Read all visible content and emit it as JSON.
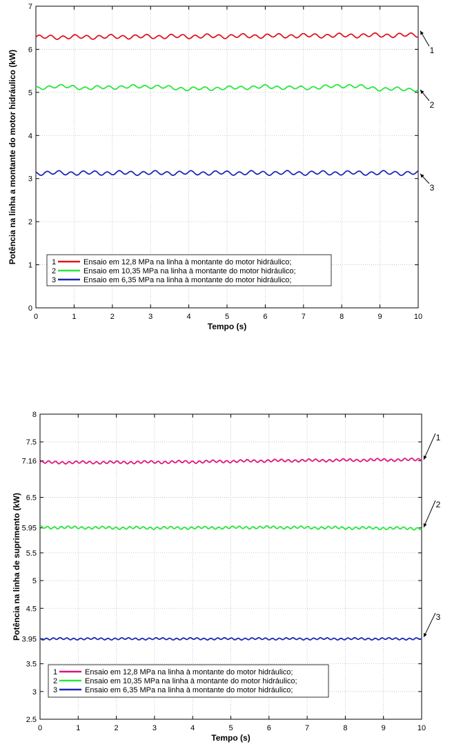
{
  "chart_data": [
    {
      "type": "line",
      "xlabel": "Tempo (s)",
      "ylabel": "Potência na linha a montante do motor hidráulico (kW)",
      "xlim": [
        0,
        10
      ],
      "ylim": [
        0,
        7
      ],
      "xticks": [
        "0",
        "1",
        "2",
        "3",
        "4",
        "5",
        "6",
        "7",
        "8",
        "9",
        "10"
      ],
      "yticks": [
        "0",
        "1",
        "2",
        "3",
        "4",
        "5",
        "6",
        "7"
      ],
      "grid": true,
      "legend_position": "bottom-left",
      "series": [
        {
          "name": "Ensaio em 12,8 MPa na linha à montante do motor hidráulico;",
          "number": "1",
          "color": "#e0141e",
          "x": [
            0,
            2,
            4,
            6,
            8,
            10
          ],
          "y": [
            6.28,
            6.29,
            6.3,
            6.31,
            6.32,
            6.33
          ]
        },
        {
          "name": "Ensaio em 10,35 MPa na linha à montante do motor hidráulico;",
          "number": "2",
          "color": "#28e63c",
          "x": [
            0,
            0.5,
            1.3,
            2.0,
            3.0,
            4.0,
            5.0,
            6.0,
            7.0,
            8.2,
            9.0,
            10
          ],
          "y": [
            5.08,
            5.15,
            5.1,
            5.12,
            5.14,
            5.08,
            5.1,
            5.13,
            5.1,
            5.16,
            5.08,
            5.07
          ]
        },
        {
          "name": "Ensaio em 6,35 MPa na linha à montante do motor hidráulico;",
          "number": "3",
          "color": "#1e28b4",
          "x": [
            0,
            2,
            4,
            6,
            8,
            10
          ],
          "y": [
            3.13,
            3.13,
            3.13,
            3.13,
            3.13,
            3.13
          ]
        }
      ]
    },
    {
      "type": "line",
      "xlabel": "Tempo (s)",
      "ylabel": "Potência na linha de suprimento (kW)",
      "xlim": [
        0,
        10
      ],
      "ylim": [
        2.5,
        8
      ],
      "xticks": [
        "0",
        "1",
        "2",
        "3",
        "4",
        "5",
        "6",
        "7",
        "8",
        "9",
        "10"
      ],
      "yticks": [
        "2.5",
        "3",
        "3.5",
        "3.95",
        "4.5",
        "5",
        "5.5",
        "5.95",
        "6.5",
        "7.16",
        "7.5",
        "8"
      ],
      "ytick_values": [
        2.5,
        3,
        3.5,
        3.95,
        4.5,
        5,
        5.5,
        5.95,
        6.5,
        7.16,
        7.5,
        8
      ],
      "grid": true,
      "legend_position": "bottom-left",
      "series": [
        {
          "name": "Ensaio em 12,8 MPa na linha à montante do motor hidráulico;",
          "number": "1",
          "color": "#e0147a",
          "x": [
            0,
            2,
            4,
            6,
            8,
            10
          ],
          "y": [
            7.13,
            7.13,
            7.14,
            7.16,
            7.17,
            7.18
          ]
        },
        {
          "name": "Ensaio em 10,35 MPa na linha à montante do motor hidráulico;",
          "number": "2",
          "color": "#28e63c",
          "x": [
            0,
            2,
            4,
            6,
            8,
            10
          ],
          "y": [
            5.96,
            5.95,
            5.95,
            5.96,
            5.95,
            5.94
          ]
        },
        {
          "name": "Ensaio em 6,35 MPa na linha à montante do motor hidráulico;",
          "number": "3",
          "color": "#1e28b4",
          "x": [
            0,
            2,
            4,
            6,
            8,
            10
          ],
          "y": [
            3.95,
            3.95,
            3.95,
            3.95,
            3.95,
            3.95
          ]
        }
      ]
    }
  ],
  "annotation_labels": [
    "1",
    "2",
    "3"
  ]
}
